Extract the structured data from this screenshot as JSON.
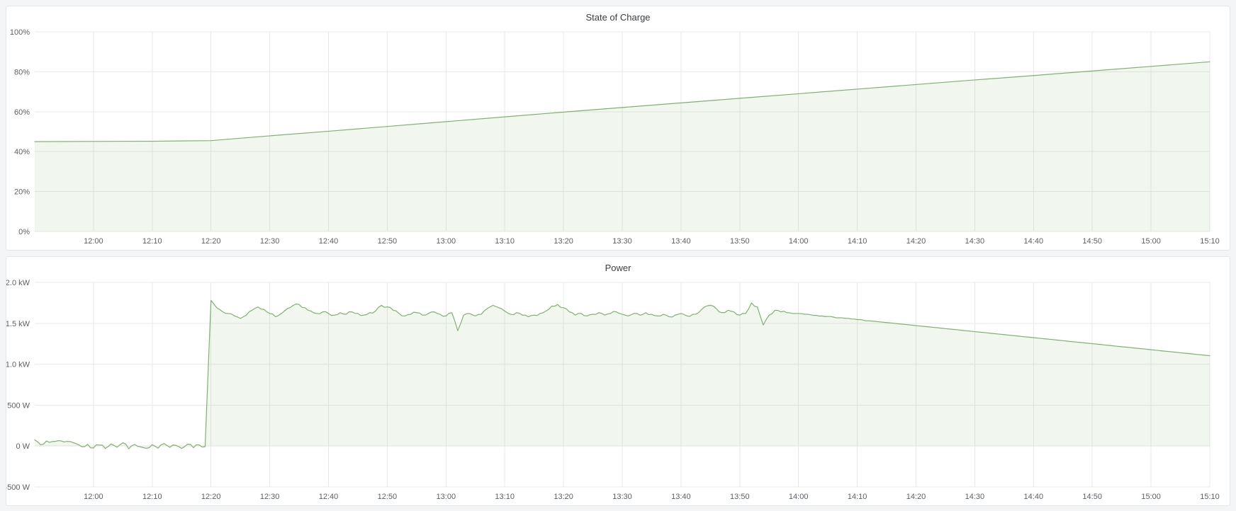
{
  "panels": [
    {
      "title": "State of Charge"
    },
    {
      "title": "Power"
    }
  ],
  "theme": {
    "page_background": "#f4f5f7",
    "panel_background": "#ffffff",
    "panel_border": "#e3e6ea",
    "grid_color": "#e9e9e9",
    "tick_label_color": "#5b5f66",
    "title_color": "#3a3d42",
    "series_line_color": "#7eb26d",
    "series_fill_color": "rgba(126,178,109,0.11)"
  },
  "chart_data": [
    {
      "type": "area",
      "title": "State of Charge",
      "ylabel": "",
      "xlabel": "",
      "unit": "percent",
      "legend": "none",
      "grid": true,
      "x_domain_minutes": [
        710,
        910
      ],
      "x_ticks": {
        "minutes": [
          720,
          730,
          740,
          750,
          760,
          770,
          780,
          790,
          800,
          810,
          820,
          830,
          840,
          850,
          860,
          870,
          880,
          890,
          900,
          910
        ],
        "labels": [
          "12:00",
          "12:10",
          "12:20",
          "12:30",
          "12:40",
          "12:50",
          "13:00",
          "13:10",
          "13:20",
          "13:30",
          "13:40",
          "13:50",
          "14:00",
          "14:10",
          "14:20",
          "14:30",
          "14:40",
          "14:50",
          "15:00",
          "15:10"
        ]
      },
      "y_domain": [
        0,
        100
      ],
      "y_ticks": {
        "values": [
          0,
          20,
          40,
          60,
          80,
          100
        ],
        "labels": [
          "0%",
          "20%",
          "40%",
          "60%",
          "80%",
          "100%"
        ]
      },
      "fill_to": 0,
      "series": [
        {
          "name": "State of Charge",
          "x_minutes": [
            710,
            720,
            730,
            740,
            750,
            760,
            770,
            780,
            790,
            800,
            810,
            820,
            830,
            840,
            850,
            860,
            870,
            880,
            890,
            900,
            910
          ],
          "values": [
            45,
            45.1,
            45.2,
            45.5,
            47.9,
            50.2,
            52.6,
            55,
            57.4,
            59.8,
            62.1,
            64.4,
            66.7,
            69,
            71.3,
            73.6,
            75.9,
            78.1,
            80.4,
            82.7,
            85
          ]
        }
      ]
    },
    {
      "type": "area",
      "title": "Power",
      "ylabel": "",
      "xlabel": "",
      "unit": "watt",
      "legend": "none",
      "grid": true,
      "x_domain_minutes": [
        710,
        910
      ],
      "x_ticks": {
        "minutes": [
          720,
          730,
          740,
          750,
          760,
          770,
          780,
          790,
          800,
          810,
          820,
          830,
          840,
          850,
          860,
          870,
          880,
          890,
          900,
          910
        ],
        "labels": [
          "12:00",
          "12:10",
          "12:20",
          "12:30",
          "12:40",
          "12:50",
          "13:00",
          "13:10",
          "13:20",
          "13:30",
          "13:40",
          "13:50",
          "14:00",
          "14:10",
          "14:20",
          "14:30",
          "14:40",
          "14:50",
          "15:00",
          "15:10"
        ]
      },
      "y_domain": [
        -500,
        2000
      ],
      "y_ticks": {
        "values": [
          -500,
          0,
          500,
          1000,
          1500,
          2000
        ],
        "labels": [
          "-500 W",
          "0 W",
          "500 W",
          "1.0 kW",
          "1.5 kW",
          "2.0 kW"
        ]
      },
      "fill_to": 0,
      "render_jitter": [
        {
          "from_minute": 710,
          "to_minute": 739,
          "amplitude_w": 22
        },
        {
          "from_minute": 741,
          "to_minute": 839,
          "amplitude_w": 16
        },
        {
          "from_minute": 840,
          "to_minute": 852,
          "amplitude_w": 5
        }
      ],
      "series": [
        {
          "name": "Power",
          "x_start_minute": 710,
          "x_step_minutes": 1,
          "values": [
            75,
            15,
            62,
            55,
            66,
            50,
            55,
            30,
            -8,
            22,
            -24,
            12,
            -30,
            26,
            -14,
            40,
            -34,
            20,
            -10,
            -28,
            16,
            -26,
            30,
            -16,
            10,
            -30,
            22,
            -20,
            14,
            -8,
            1780,
            1690,
            1640,
            1620,
            1590,
            1560,
            1600,
            1660,
            1700,
            1670,
            1620,
            1580,
            1620,
            1680,
            1720,
            1730,
            1690,
            1650,
            1620,
            1640,
            1620,
            1600,
            1630,
            1610,
            1640,
            1620,
            1600,
            1630,
            1650,
            1720,
            1700,
            1660,
            1620,
            1590,
            1610,
            1630,
            1600,
            1620,
            1640,
            1610,
            1590,
            1630,
            1410,
            1600,
            1620,
            1590,
            1610,
            1680,
            1720,
            1690,
            1650,
            1610,
            1630,
            1600,
            1580,
            1600,
            1620,
            1650,
            1710,
            1730,
            1690,
            1640,
            1600,
            1620,
            1590,
            1610,
            1630,
            1600,
            1620,
            1640,
            1610,
            1590,
            1620,
            1600,
            1630,
            1610,
            1590,
            1610,
            1580,
            1600,
            1620,
            1590,
            1610,
            1630,
            1700,
            1720,
            1680,
            1630,
            1660,
            1640,
            1600,
            1620,
            1750,
            1700,
            1480,
            1600,
            1660,
            1640,
            1630,
            1620,
            1620,
            1612,
            1605,
            1597,
            1590,
            1583,
            1575,
            1568,
            1561,
            1553,
            1546,
            1539,
            1531,
            1524,
            1516,
            1509,
            1502,
            1494,
            1487,
            1480,
            1472,
            1465,
            1457,
            1450,
            1443,
            1435,
            1428,
            1421,
            1413,
            1406,
            1398,
            1391,
            1384,
            1376,
            1369,
            1362,
            1354,
            1347,
            1339,
            1332,
            1325,
            1317,
            1310,
            1303,
            1295,
            1288,
            1280,
            1273,
            1266,
            1258,
            1251,
            1244,
            1236,
            1229,
            1221,
            1214,
            1207,
            1199,
            1192,
            1185,
            1177,
            1170,
            1162,
            1155,
            1148,
            1140,
            1133,
            1126,
            1118,
            1111,
            1104
          ]
        }
      ]
    }
  ]
}
